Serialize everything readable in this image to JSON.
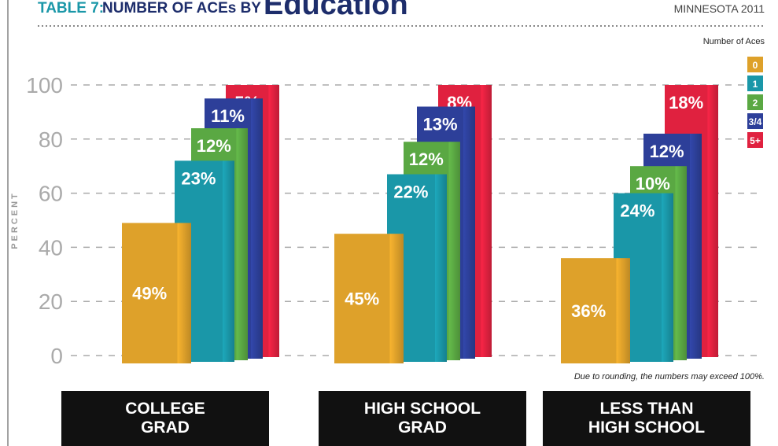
{
  "chart_data": {
    "type": "stacked-bar",
    "table_label": "TABLE 7:",
    "title": "NUMBER OF ACEs BY",
    "title_emphasis": "Education",
    "subtitle": "MINNESOTA 2011",
    "y_label": "PERCENT",
    "legend_title": "Number of Aces",
    "note": "Due to rounding, the numbers may exceed 100%.",
    "categories": [
      "COLLEGE\nGRAD",
      "HIGH SCHOOL\nGRAD",
      "LESS THAN\nHIGH SCHOOL"
    ],
    "series": [
      {
        "name": "0",
        "color": "#dea12a",
        "values": [
          49,
          45,
          36
        ],
        "value_labels": [
          "49%",
          "45%",
          "36%"
        ]
      },
      {
        "name": "1",
        "color": "#1a97a8",
        "values": [
          23,
          22,
          24
        ],
        "value_labels": [
          "23%",
          "22%",
          "24%"
        ]
      },
      {
        "name": "2",
        "color": "#5aa843",
        "values": [
          12,
          12,
          10
        ],
        "value_labels": [
          "12%",
          "12%",
          "10%"
        ]
      },
      {
        "name": "3/4",
        "color": "#2d3f99",
        "values": [
          11,
          13,
          12
        ],
        "value_labels": [
          "11%",
          "13%",
          "12%"
        ]
      },
      {
        "name": "5+",
        "color": "#e0213f",
        "values": [
          5,
          8,
          18
        ],
        "value_labels": [
          "5%",
          "8%",
          "18%"
        ]
      }
    ],
    "ylim": [
      0,
      100
    ],
    "yticks": [
      0,
      20,
      40,
      60,
      80,
      100
    ],
    "grid": true,
    "legend": "right"
  }
}
